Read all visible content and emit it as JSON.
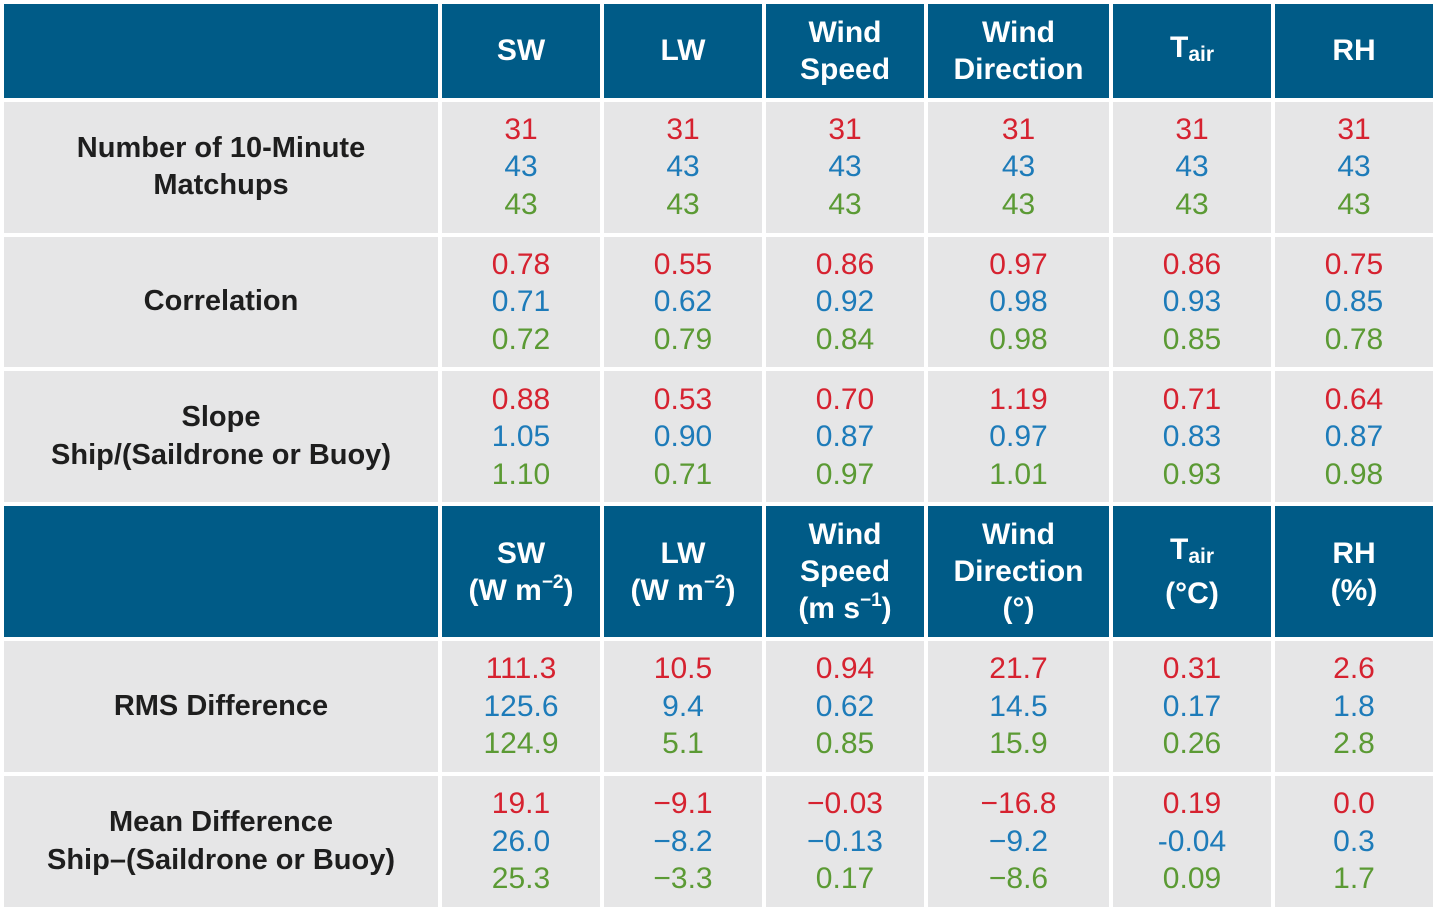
{
  "header_top": {
    "sw": "SW",
    "lw": "LW",
    "wind_speed": [
      "Wind",
      "Speed"
    ],
    "wind_direction": [
      "Wind",
      "Direction"
    ],
    "tair_base": "T",
    "tair_sub": "air",
    "rh": "RH"
  },
  "header_bottom": {
    "sw": [
      "SW",
      "(W m",
      "−2",
      ")"
    ],
    "lw": [
      "LW",
      "(W m",
      "−2",
      ")"
    ],
    "wind_speed": [
      "Wind",
      "Speed",
      "(m s",
      "−1",
      ")"
    ],
    "wind_direction": [
      "Wind",
      "Direction",
      "(°)"
    ],
    "tair_base": "T",
    "tair_sub": "air",
    "tair_unit": "(°C)",
    "rh": [
      "RH",
      "(%)"
    ]
  },
  "rows_top": [
    {
      "label": [
        "Number of 10-Minute",
        "Matchups"
      ],
      "cells": [
        [
          "31",
          "43",
          "43"
        ],
        [
          "31",
          "43",
          "43"
        ],
        [
          "31",
          "43",
          "43"
        ],
        [
          "31",
          "43",
          "43"
        ],
        [
          "31",
          "43",
          "43"
        ],
        [
          "31",
          "43",
          "43"
        ]
      ]
    },
    {
      "label": [
        "Correlation"
      ],
      "cells": [
        [
          "0.78",
          "0.71",
          "0.72"
        ],
        [
          "0.55",
          "0.62",
          "0.79"
        ],
        [
          "0.86",
          "0.92",
          "0.84"
        ],
        [
          "0.97",
          "0.98",
          "0.98"
        ],
        [
          "0.86",
          "0.93",
          "0.85"
        ],
        [
          "0.75",
          "0.85",
          "0.78"
        ]
      ]
    },
    {
      "label": [
        "Slope",
        "Ship/(Saildrone or Buoy)"
      ],
      "cells": [
        [
          "0.88",
          "1.05",
          "1.10"
        ],
        [
          "0.53",
          "0.90",
          "0.71"
        ],
        [
          "0.70",
          "0.87",
          "0.97"
        ],
        [
          "1.19",
          "0.97",
          "1.01"
        ],
        [
          "0.71",
          "0.83",
          "0.93"
        ],
        [
          "0.64",
          "0.87",
          "0.98"
        ]
      ]
    }
  ],
  "rows_bottom": [
    {
      "label": [
        "RMS Difference"
      ],
      "cells": [
        [
          "111.3",
          "125.6",
          "124.9"
        ],
        [
          "10.5",
          "9.4",
          "5.1"
        ],
        [
          "0.94",
          "0.62",
          "0.85"
        ],
        [
          "21.7",
          "14.5",
          "15.9"
        ],
        [
          "0.31",
          "0.17",
          "0.26"
        ],
        [
          "2.6",
          "1.8",
          "2.8"
        ]
      ]
    },
    {
      "label": [
        "Mean Difference",
        "Ship–(Saildrone or Buoy)"
      ],
      "cells": [
        [
          "19.1",
          "26.0",
          "25.3"
        ],
        [
          "−9.1",
          "−8.2",
          "−3.3"
        ],
        [
          "−0.03",
          "−0.13",
          "0.17"
        ],
        [
          "−16.8",
          "−9.2",
          "−8.6"
        ],
        [
          "0.19",
          "-0.04",
          "0.09"
        ],
        [
          "0.0",
          "0.3",
          "1.7"
        ]
      ]
    }
  ],
  "colors": {
    "header_bg": "#005b87",
    "cell_bg": "#e6e6e7",
    "series_1": "#d62230",
    "series_2": "#1d7bb9",
    "series_3": "#5b9a34"
  }
}
